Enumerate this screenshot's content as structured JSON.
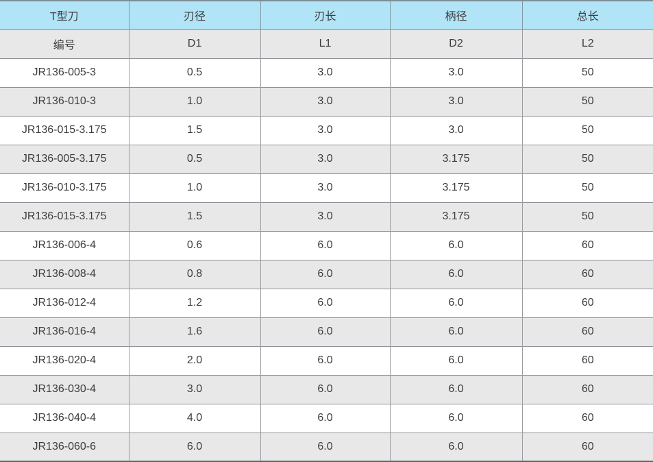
{
  "chart_data": {
    "type": "table",
    "header_group_labels": [
      "T型刀",
      "刃径",
      "刃长",
      "柄径",
      "总长"
    ],
    "header_code_labels": [
      "编号",
      "D1",
      "L1",
      "D2",
      "L2"
    ],
    "rows": [
      [
        "JR136-005-3",
        "0.5",
        "3.0",
        "3.0",
        "50"
      ],
      [
        "JR136-010-3",
        "1.0",
        "3.0",
        "3.0",
        "50"
      ],
      [
        "JR136-015-3.175",
        "1.5",
        "3.0",
        "3.0",
        "50"
      ],
      [
        "JR136-005-3.175",
        "0.5",
        "3.0",
        "3.175",
        "50"
      ],
      [
        "JR136-010-3.175",
        "1.0",
        "3.0",
        "3.175",
        "50"
      ],
      [
        "JR136-015-3.175",
        "1.5",
        "3.0",
        "3.175",
        "50"
      ],
      [
        "JR136-006-4",
        "0.6",
        "6.0",
        "6.0",
        "60"
      ],
      [
        "JR136-008-4",
        "0.8",
        "6.0",
        "6.0",
        "60"
      ],
      [
        "JR136-012-4",
        "1.2",
        "6.0",
        "6.0",
        "60"
      ],
      [
        "JR136-016-4",
        "1.6",
        "6.0",
        "6.0",
        "60"
      ],
      [
        "JR136-020-4",
        "2.0",
        "6.0",
        "6.0",
        "60"
      ],
      [
        "JR136-030-4",
        "3.0",
        "6.0",
        "6.0",
        "60"
      ],
      [
        "JR136-040-4",
        "4.0",
        "6.0",
        "6.0",
        "60"
      ],
      [
        "JR136-060-6",
        "6.0",
        "6.0",
        "6.0",
        "60"
      ]
    ],
    "layout": {
      "row_striping": "white / light-gray alternating, starting white",
      "grid": "on"
    }
  },
  "colors": {
    "header_blue": "#b1e4f7",
    "stripe_gray": "#e8e8e8",
    "stripe_white": "#ffffff",
    "border_horizontal": "#8b9196",
    "border_vertical": "#9b9da0",
    "text": "#3c3c3c"
  }
}
